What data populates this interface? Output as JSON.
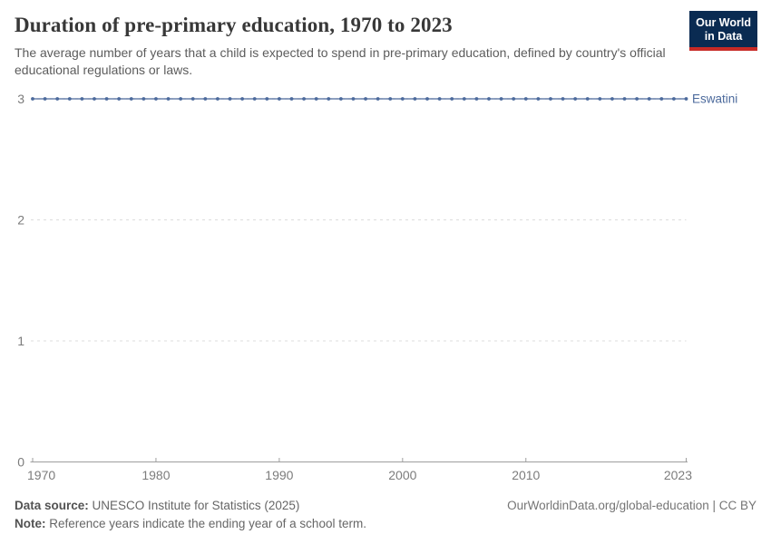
{
  "header": {
    "title": "Duration of pre-primary education, 1970 to 2023",
    "subtitle": "The average number of years that a child is expected to spend in pre-primary education, defined by country's official educational regulations or laws.",
    "logo": {
      "line1": "Our World",
      "line2": "in Data",
      "bg_color": "#0A2B52",
      "bar_color": "#C72A26"
    }
  },
  "chart_data": {
    "type": "line",
    "title": "Duration of pre-primary education, 1970 to 2023",
    "xlabel": "",
    "ylabel": "",
    "ylim": [
      0,
      3
    ],
    "yticks": [
      0,
      1,
      2,
      3
    ],
    "xticks": [
      1970,
      1980,
      1990,
      2000,
      2010,
      2023
    ],
    "grid": "horizontal-dashed",
    "legend_position": "right-end-label",
    "marker": "circle",
    "x": [
      1970,
      1971,
      1972,
      1973,
      1974,
      1975,
      1976,
      1977,
      1978,
      1979,
      1980,
      1981,
      1982,
      1983,
      1984,
      1985,
      1986,
      1987,
      1988,
      1989,
      1990,
      1991,
      1992,
      1993,
      1994,
      1995,
      1996,
      1997,
      1998,
      1999,
      2000,
      2001,
      2002,
      2003,
      2004,
      2005,
      2006,
      2007,
      2008,
      2009,
      2010,
      2011,
      2012,
      2013,
      2014,
      2015,
      2016,
      2017,
      2018,
      2019,
      2020,
      2021,
      2022,
      2023
    ],
    "series": [
      {
        "name": "Eswatini",
        "color": "#4C6A9C",
        "values": [
          3,
          3,
          3,
          3,
          3,
          3,
          3,
          3,
          3,
          3,
          3,
          3,
          3,
          3,
          3,
          3,
          3,
          3,
          3,
          3,
          3,
          3,
          3,
          3,
          3,
          3,
          3,
          3,
          3,
          3,
          3,
          3,
          3,
          3,
          3,
          3,
          3,
          3,
          3,
          3,
          3,
          3,
          3,
          3,
          3,
          3,
          3,
          3,
          3,
          3,
          3,
          3,
          3,
          3
        ]
      }
    ]
  },
  "footer": {
    "datasource_label": "Data source:",
    "datasource_text": "UNESCO Institute for Statistics (2025)",
    "note_label": "Note:",
    "note_text": "Reference years indicate the ending year of a school term.",
    "attribution": "OurWorldinData.org/global-education | CC BY"
  }
}
